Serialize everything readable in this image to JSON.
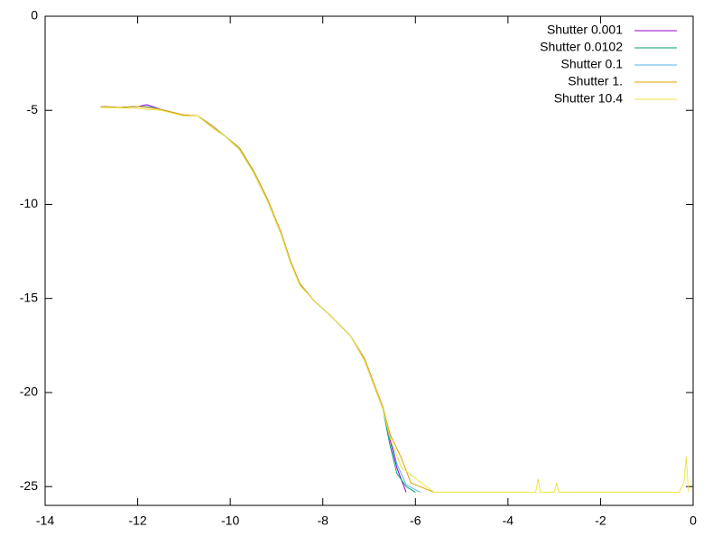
{
  "chart_data": {
    "type": "line",
    "xlim": [
      -14,
      0
    ],
    "xticks": [
      -14,
      -12,
      -10,
      -8,
      -6,
      -4,
      -2,
      0
    ],
    "ylim": [
      -26,
      0
    ],
    "yticks": [
      0,
      -5,
      -10,
      -15,
      -20,
      -25
    ],
    "legend": "top-right",
    "series": [
      {
        "name": "Shutter 0.001",
        "color": "#9400d3",
        "x": [
          -12.8,
          -12.4,
          -12.0,
          -11.8,
          -11.5,
          -11.0,
          -10.7,
          -10.4,
          -10.1,
          -9.8,
          -9.5,
          -9.2,
          -8.9,
          -8.7,
          -8.5,
          -8.2,
          -7.8,
          -7.4,
          -7.1,
          -6.9,
          -6.7,
          -6.55,
          -6.4,
          -6.2
        ],
        "values": [
          -4.8,
          -4.85,
          -4.8,
          -4.7,
          -4.95,
          -5.25,
          -5.3,
          -5.8,
          -6.4,
          -7.0,
          -8.2,
          -9.7,
          -11.5,
          -13.0,
          -14.2,
          -15.1,
          -16.0,
          -17.0,
          -18.2,
          -19.5,
          -20.8,
          -22.5,
          -24.0,
          -25.3
        ]
      },
      {
        "name": "Shutter 0.0102",
        "color": "#009e73",
        "x": [
          -12.8,
          -12.4,
          -12.0,
          -11.8,
          -11.5,
          -11.0,
          -10.7,
          -10.4,
          -10.1,
          -9.8,
          -9.5,
          -9.2,
          -8.9,
          -8.7,
          -8.5,
          -8.2,
          -7.8,
          -7.4,
          -7.1,
          -6.9,
          -6.7,
          -6.55,
          -6.4,
          -6.2,
          -6.0
        ],
        "values": [
          -4.8,
          -4.85,
          -4.8,
          -4.8,
          -4.95,
          -5.3,
          -5.3,
          -5.9,
          -6.4,
          -7.1,
          -8.3,
          -9.8,
          -11.6,
          -13.1,
          -14.2,
          -15.1,
          -16.0,
          -17.0,
          -18.3,
          -19.6,
          -20.9,
          -22.8,
          -24.3,
          -25.0,
          -25.3
        ]
      },
      {
        "name": "Shutter 0.1",
        "color": "#56b4e9",
        "x": [
          -12.8,
          -12.4,
          -12.0,
          -11.8,
          -11.5,
          -11.0,
          -10.7,
          -10.4,
          -10.1,
          -9.8,
          -9.5,
          -9.2,
          -8.9,
          -8.7,
          -8.5,
          -8.2,
          -7.8,
          -7.4,
          -7.1,
          -6.9,
          -6.7,
          -6.55,
          -6.4,
          -6.2,
          -5.9
        ],
        "values": [
          -4.8,
          -4.85,
          -4.8,
          -4.8,
          -4.95,
          -5.25,
          -5.3,
          -5.8,
          -6.4,
          -7.0,
          -8.2,
          -9.7,
          -11.5,
          -13.0,
          -14.2,
          -15.1,
          -16.0,
          -17.0,
          -18.2,
          -19.5,
          -20.8,
          -22.3,
          -23.8,
          -24.9,
          -25.3
        ]
      },
      {
        "name": "Shutter 1.",
        "color": "#e69f00",
        "x": [
          -12.8,
          -12.4,
          -12.0,
          -11.8,
          -11.5,
          -11.0,
          -10.7,
          -10.4,
          -10.1,
          -9.8,
          -9.5,
          -9.2,
          -8.9,
          -8.7,
          -8.5,
          -8.2,
          -7.8,
          -7.4,
          -7.1,
          -6.9,
          -6.7,
          -6.55,
          -6.3,
          -6.1,
          -5.6
        ],
        "values": [
          -4.8,
          -4.85,
          -4.8,
          -4.85,
          -4.95,
          -5.25,
          -5.3,
          -5.8,
          -6.4,
          -7.0,
          -8.2,
          -9.7,
          -11.5,
          -13.0,
          -14.2,
          -15.1,
          -16.0,
          -17.0,
          -18.2,
          -19.5,
          -20.8,
          -22.2,
          -23.5,
          -24.8,
          -25.3
        ]
      },
      {
        "name": "Shutter 10.4",
        "color": "#f0e442",
        "x": [
          -12.8,
          -12.0,
          -11.5,
          -11.0,
          -10.7,
          -10.4,
          -10.1,
          -9.8,
          -9.5,
          -9.2,
          -8.9,
          -8.7,
          -8.5,
          -8.2,
          -7.8,
          -7.4,
          -7.1,
          -6.9,
          -6.7,
          -6.55,
          -6.3,
          -5.6,
          -3.4,
          -3.35,
          -3.3,
          -3.0,
          -2.95,
          -2.9,
          -0.3,
          -0.2,
          -0.15,
          -0.1
        ],
        "values": [
          -4.85,
          -4.9,
          -5.0,
          -5.3,
          -5.3,
          -5.9,
          -6.4,
          -7.1,
          -8.3,
          -9.8,
          -11.6,
          -13.1,
          -14.3,
          -15.1,
          -16.0,
          -17.0,
          -18.3,
          -19.6,
          -20.9,
          -22.4,
          -24.0,
          -25.3,
          -25.3,
          -24.6,
          -25.3,
          -25.3,
          -24.8,
          -25.3,
          -25.3,
          -24.8,
          -23.4,
          -25.3
        ]
      }
    ]
  }
}
